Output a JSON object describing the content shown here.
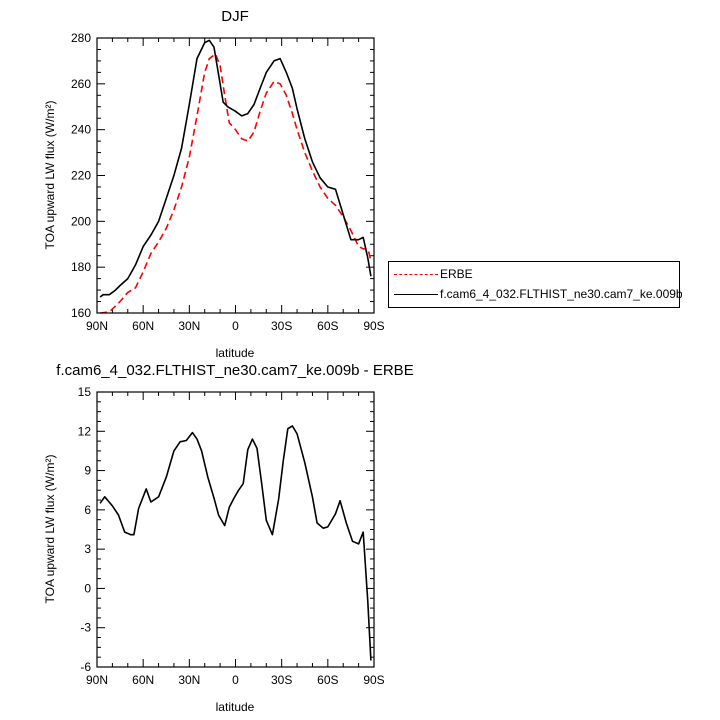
{
  "chart_data": [
    {
      "type": "line",
      "title": "DJF",
      "xlabel": "latitude",
      "ylabel": "TOA upward LW flux (W/m²)",
      "xlim": [
        -90,
        90
      ],
      "ylim": [
        160,
        280
      ],
      "xticks": [
        -90,
        -60,
        -30,
        0,
        30,
        60,
        90
      ],
      "xtick_labels": [
        "90N",
        "60N",
        "30N",
        "0",
        "30S",
        "60S",
        "90S"
      ],
      "yticks": [
        160,
        180,
        200,
        220,
        240,
        260,
        280
      ],
      "legend_position": "right",
      "series": [
        {
          "name": "ERBE",
          "color": "#ff0000",
          "dash": "dashed",
          "x": [
            -88,
            -82,
            -78,
            -75,
            -70,
            -65,
            -60,
            -55,
            -50,
            -45,
            -40,
            -35,
            -30,
            -25,
            -20,
            -17,
            -13,
            -10,
            -7,
            -4,
            0,
            4,
            8,
            12,
            16,
            20,
            25,
            29,
            33,
            37,
            40,
            45,
            50,
            55,
            60,
            65,
            70,
            75,
            80,
            83,
            86,
            88
          ],
          "y": [
            160,
            160.5,
            163,
            165,
            169,
            171,
            178,
            186,
            191,
            197,
            205,
            215,
            228,
            246,
            265,
            271,
            273,
            268,
            255,
            243,
            240,
            236,
            235,
            239,
            248,
            256,
            261,
            260,
            255,
            247,
            240,
            230,
            222,
            215,
            210,
            207,
            202,
            196,
            189,
            188,
            188,
            183
          ]
        },
        {
          "name": "f.cam6_4_032.FLTHIST_ne30.cam7_ke.009b",
          "color": "#000000",
          "dash": "solid",
          "x": [
            -88,
            -86,
            -82,
            -78,
            -75,
            -70,
            -65,
            -60,
            -55,
            -50,
            -45,
            -40,
            -35,
            -30,
            -25,
            -20,
            -17,
            -14,
            -11,
            -8,
            -5,
            0,
            4,
            8,
            12,
            16,
            20,
            25,
            29,
            33,
            37,
            40,
            45,
            50,
            55,
            60,
            65,
            70,
            75,
            80,
            83,
            86,
            88
          ],
          "y": [
            167,
            168,
            168,
            170,
            172,
            175,
            181,
            189,
            194,
            200,
            210,
            220,
            232,
            251,
            271,
            278,
            279,
            276,
            264,
            252,
            250,
            248,
            246,
            247,
            251,
            258,
            265,
            270,
            271,
            265,
            258,
            249,
            236,
            226,
            219,
            215,
            214,
            203,
            192,
            192,
            193,
            184,
            176
          ]
        }
      ]
    },
    {
      "type": "line",
      "title": "f.cam6_4_032.FLTHIST_ne30.cam7_ke.009b - ERBE",
      "xlabel": "latitude",
      "ylabel": "TOA upward LW flux (W/m²)",
      "xlim": [
        -90,
        90
      ],
      "ylim": [
        -6,
        15
      ],
      "xticks": [
        -90,
        -60,
        -30,
        0,
        30,
        60,
        90
      ],
      "xtick_labels": [
        "90N",
        "60N",
        "30N",
        "0",
        "30S",
        "60S",
        "90S"
      ],
      "yticks": [
        -6,
        -3,
        0,
        3,
        6,
        9,
        12,
        15
      ],
      "series": [
        {
          "color": "#000000",
          "dash": "solid",
          "x": [
            -88,
            -85,
            -80,
            -76,
            -72,
            -68,
            -66,
            -63,
            -58,
            -55,
            -50,
            -45,
            -40,
            -36,
            -32,
            -28,
            -25,
            -22,
            -18,
            -14,
            -11,
            -7,
            -4,
            -1,
            0,
            2,
            5,
            8,
            11,
            14,
            17,
            20,
            24,
            28,
            31,
            34,
            37,
            40,
            45,
            50,
            53,
            57,
            60,
            65,
            68,
            72,
            76,
            80,
            83,
            86,
            88
          ],
          "y": [
            6.5,
            7.0,
            6.3,
            5.6,
            4.3,
            4.1,
            4.1,
            6.1,
            7.6,
            6.6,
            7.0,
            8.5,
            10.5,
            11.2,
            11.3,
            11.9,
            11.4,
            10.5,
            8.5,
            6.9,
            5.6,
            4.8,
            6.2,
            6.9,
            7.1,
            7.5,
            8.0,
            10.6,
            11.4,
            10.7,
            8.0,
            5.2,
            4.1,
            6.8,
            9.7,
            12.2,
            12.4,
            11.8,
            9.6,
            7.0,
            5.0,
            4.6,
            4.7,
            5.7,
            6.7,
            5.0,
            3.6,
            3.4,
            4.3,
            -1.0,
            -5.5
          ]
        }
      ]
    }
  ]
}
